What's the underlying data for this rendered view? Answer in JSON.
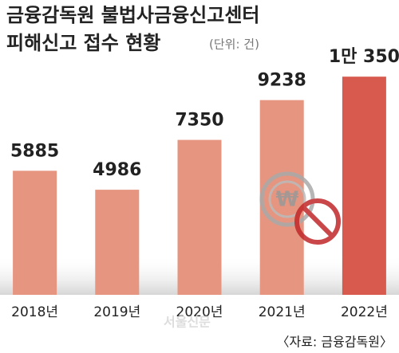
{
  "chart_data": {
    "type": "bar",
    "title": "금융감독원 불법사금융신고센터",
    "subtitle": "피해신고 접수 현황",
    "unit": "(단위: 건)",
    "categories": [
      "2018년",
      "2019년",
      "2020년",
      "2021년",
      "2022년"
    ],
    "values": [
      5885,
      4986,
      7350,
      9238,
      10350
    ],
    "value_labels": [
      "5885",
      "4986",
      "7350",
      "9238",
      "1만 350"
    ],
    "colors": [
      "#e59580",
      "#e59580",
      "#e59580",
      "#e59580",
      "#d85a4f"
    ],
    "ylim": [
      0,
      11000
    ],
    "source": "〈자료: 금융감독원〉",
    "watermark": "서울신문"
  }
}
